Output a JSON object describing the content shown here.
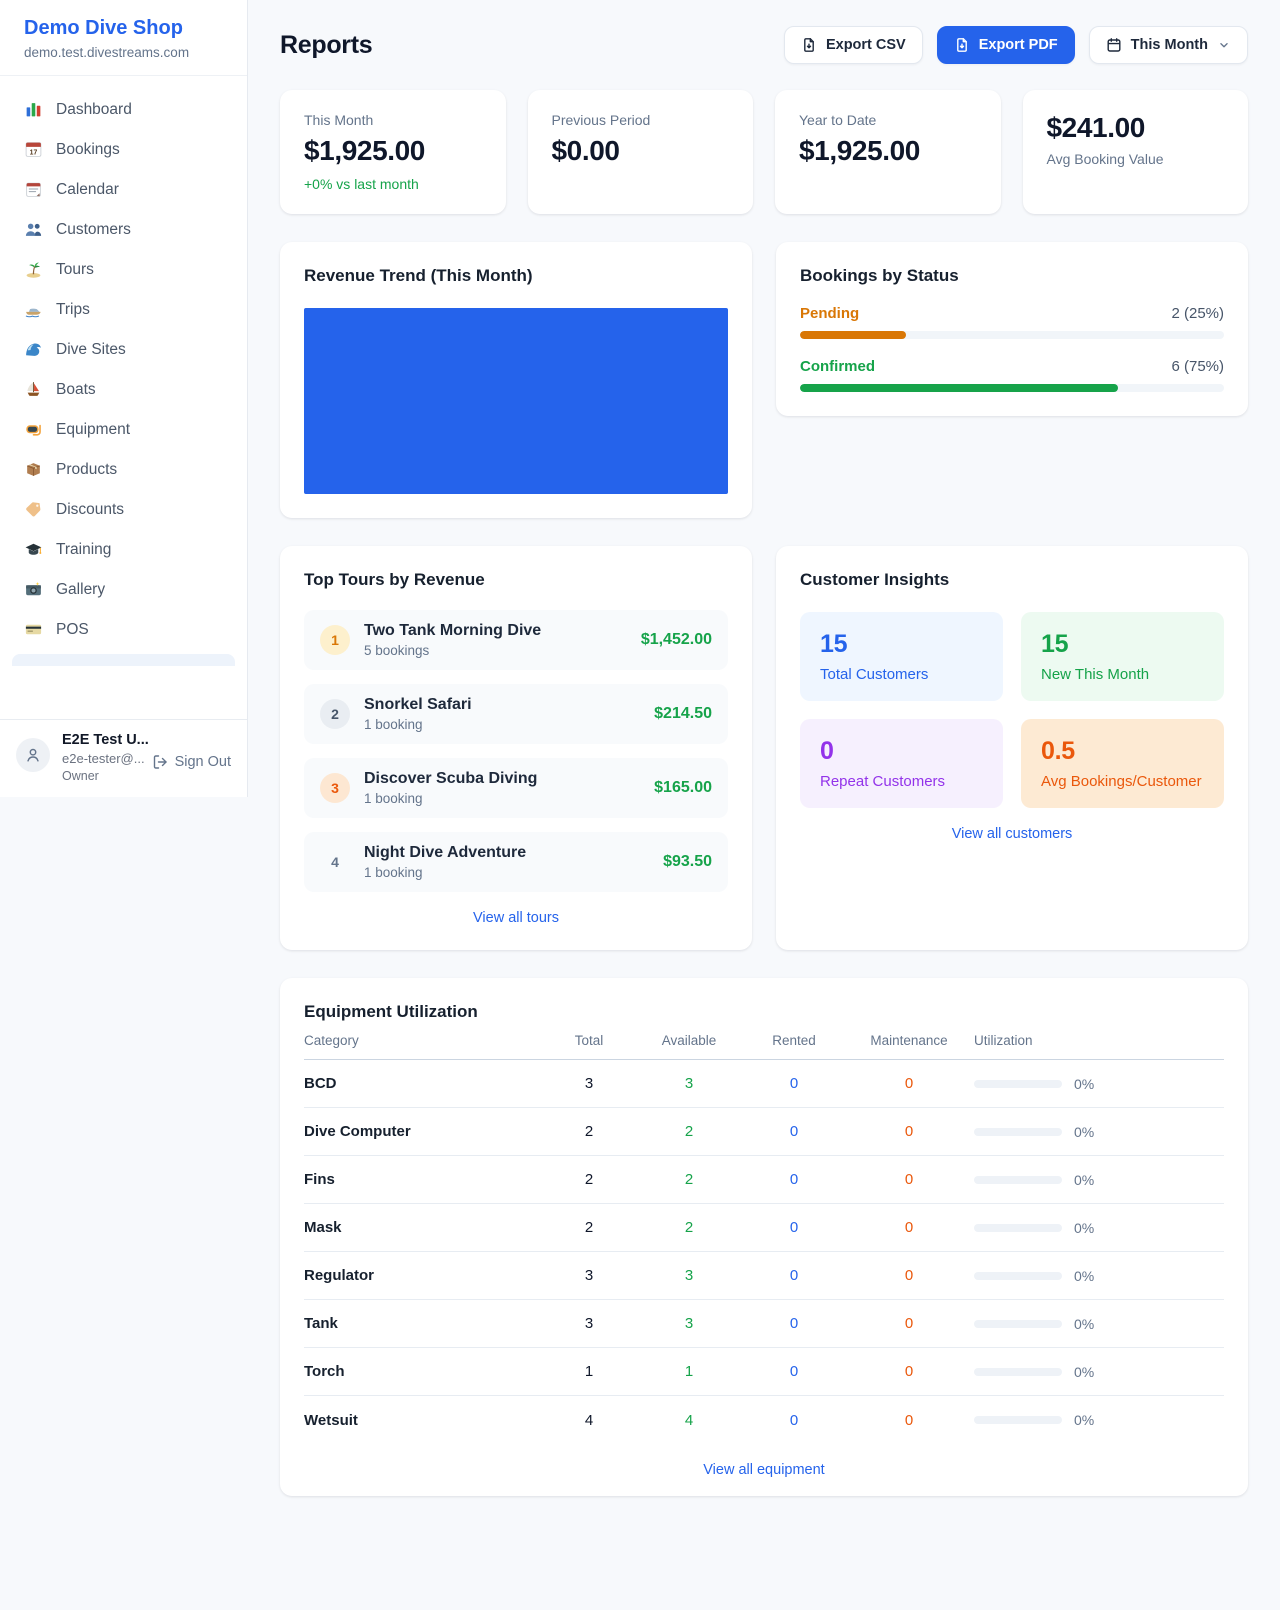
{
  "sidebar": {
    "brand": {
      "name": "Demo Dive Shop",
      "domain": "demo.test.divestreams.com"
    },
    "nav": [
      {
        "id": "dashboard",
        "icon": "dashboard-icon",
        "label": "Dashboard"
      },
      {
        "id": "bookings",
        "icon": "bookings-icon",
        "label": "Bookings"
      },
      {
        "id": "calendar",
        "icon": "calendar-icon",
        "label": "Calendar"
      },
      {
        "id": "customers",
        "icon": "customers-icon",
        "label": "Customers"
      },
      {
        "id": "tours",
        "icon": "tours-icon",
        "label": "Tours"
      },
      {
        "id": "trips",
        "icon": "trips-icon",
        "label": "Trips"
      },
      {
        "id": "dive-sites",
        "icon": "dive-sites-icon",
        "label": "Dive Sites"
      },
      {
        "id": "boats",
        "icon": "boats-icon",
        "label": "Boats"
      },
      {
        "id": "equipment",
        "icon": "equipment-icon",
        "label": "Equipment"
      },
      {
        "id": "products",
        "icon": "products-icon",
        "label": "Products"
      },
      {
        "id": "discounts",
        "icon": "discounts-icon",
        "label": "Discounts"
      },
      {
        "id": "training",
        "icon": "training-icon",
        "label": "Training"
      },
      {
        "id": "gallery",
        "icon": "gallery-icon",
        "label": "Gallery"
      },
      {
        "id": "pos",
        "icon": "pos-icon",
        "label": "POS"
      }
    ],
    "user": {
      "name": "E2E Test U...",
      "email": "e2e-tester@...",
      "role": "Owner",
      "sign_out": "Sign Out"
    }
  },
  "header": {
    "title": "Reports",
    "export_csv": "Export CSV",
    "export_pdf": "Export PDF",
    "period": "This Month"
  },
  "stats": [
    {
      "label": "This Month",
      "value": "$1,925.00",
      "delta": "+0% vs last month",
      "value_first": false
    },
    {
      "label": "Previous Period",
      "value": "$0.00",
      "delta": "",
      "value_first": false
    },
    {
      "label": "Year to Date",
      "value": "$1,925.00",
      "delta": "",
      "value_first": false
    },
    {
      "label": "Avg Booking Value",
      "value": "$241.00",
      "delta": "",
      "value_first": true
    }
  ],
  "revenue_trend": {
    "title": "Revenue Trend (This Month)",
    "bar_color": "#2563eb",
    "chart": {
      "type": "bar",
      "categories": [
        "This Month"
      ],
      "values": [
        1925
      ]
    }
  },
  "bookings_by_status": {
    "title": "Bookings by Status",
    "items": [
      {
        "label": "Pending",
        "value": "2 (25%)",
        "pct": 25,
        "color": "#d97706"
      },
      {
        "label": "Confirmed",
        "value": "6 (75%)",
        "pct": 75,
        "color": "#16a34a"
      }
    ]
  },
  "top_tours": {
    "title": "Top Tours by Revenue",
    "rows": [
      {
        "rank": "1",
        "rank_bg": "#fdf0cd",
        "rank_color": "#d97706",
        "name": "Two Tank Morning Dive",
        "sub": "5 bookings",
        "amount": "$1,452.00"
      },
      {
        "rank": "2",
        "rank_bg": "#e9edf2",
        "rank_color": "#475569",
        "name": "Snorkel Safari",
        "sub": "1 booking",
        "amount": "$214.50"
      },
      {
        "rank": "3",
        "rank_bg": "#fde7d2",
        "rank_color": "#ea580c",
        "name": "Discover Scuba Diving",
        "sub": "1 booking",
        "amount": "$165.00"
      },
      {
        "rank": "4",
        "rank_bg": "transparent",
        "rank_color": "#64748b",
        "name": "Night Dive Adventure",
        "sub": "1 booking",
        "amount": "$93.50"
      }
    ],
    "view_all": "View all tours"
  },
  "customer_insights": {
    "title": "Customer Insights",
    "tiles": [
      {
        "value": "15",
        "label": "Total Customers",
        "bg": "#eff6ff",
        "color": "#2563eb"
      },
      {
        "value": "15",
        "label": "New This Month",
        "bg": "#edfaf1",
        "color": "#16a34a"
      },
      {
        "value": "0",
        "label": "Repeat Customers",
        "bg": "#f6f0fe",
        "color": "#9333ea"
      },
      {
        "value": "0.5",
        "label": "Avg Bookings/Customer",
        "bg": "#fdead3",
        "color": "#ea580c"
      }
    ],
    "view_all": "View all customers"
  },
  "equipment": {
    "title": "Equipment Utilization",
    "columns": [
      "Category",
      "Total",
      "Available",
      "Rented",
      "Maintenance",
      "Utilization"
    ],
    "rows": [
      {
        "category": "BCD",
        "total": "3",
        "available": "3",
        "rented": "0",
        "maintenance": "0",
        "utilization_pct": 0,
        "utilization_label": "0%"
      },
      {
        "category": "Dive Computer",
        "total": "2",
        "available": "2",
        "rented": "0",
        "maintenance": "0",
        "utilization_pct": 0,
        "utilization_label": "0%"
      },
      {
        "category": "Fins",
        "total": "2",
        "available": "2",
        "rented": "0",
        "maintenance": "0",
        "utilization_pct": 0,
        "utilization_label": "0%"
      },
      {
        "category": "Mask",
        "total": "2",
        "available": "2",
        "rented": "0",
        "maintenance": "0",
        "utilization_pct": 0,
        "utilization_label": "0%"
      },
      {
        "category": "Regulator",
        "total": "3",
        "available": "3",
        "rented": "0",
        "maintenance": "0",
        "utilization_pct": 0,
        "utilization_label": "0%"
      },
      {
        "category": "Tank",
        "total": "3",
        "available": "3",
        "rented": "0",
        "maintenance": "0",
        "utilization_pct": 0,
        "utilization_label": "0%"
      },
      {
        "category": "Torch",
        "total": "1",
        "available": "1",
        "rented": "0",
        "maintenance": "0",
        "utilization_pct": 0,
        "utilization_label": "0%"
      },
      {
        "category": "Wetsuit",
        "total": "4",
        "available": "4",
        "rented": "0",
        "maintenance": "0",
        "utilization_pct": 0,
        "utilization_label": "0%"
      }
    ],
    "view_all": "View all equipment"
  }
}
